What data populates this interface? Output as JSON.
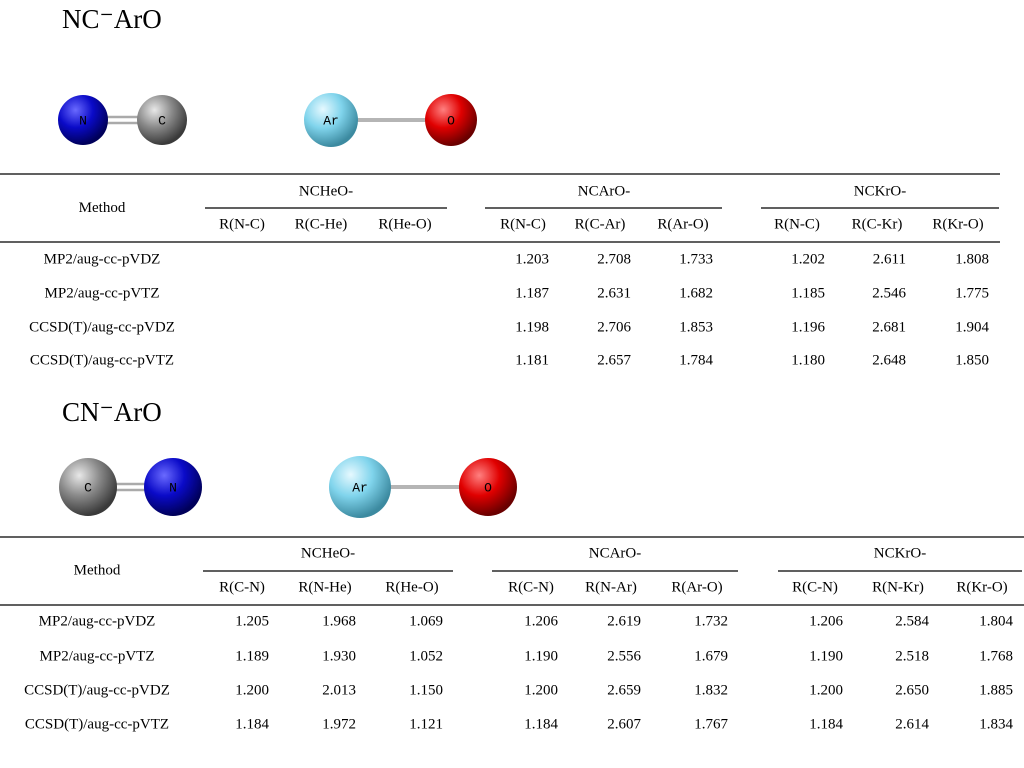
{
  "sections": [
    {
      "title": "NC⁻ArO",
      "molecules": [
        [
          "N",
          "C"
        ],
        [
          "Ar",
          "O"
        ]
      ],
      "table": {
        "header": "Method",
        "groups": [
          {
            "name": "NCHeO-",
            "columns": [
              "R(N-C)",
              "R(C-He)",
              "R(He-O)"
            ]
          },
          {
            "name": "NCArO-",
            "columns": [
              "R(N-C)",
              "R(C-Ar)",
              "R(Ar-O)"
            ]
          },
          {
            "name": "NCKrO-",
            "columns": [
              "R(N-C)",
              "R(C-Kr)",
              "R(Kr-O)"
            ]
          }
        ],
        "rows": [
          {
            "method": "MP2/aug-cc-pVDZ",
            "values": [
              null,
              null,
              null,
              "1.203",
              "2.708",
              "1.733",
              "1.202",
              "2.611",
              "1.808"
            ]
          },
          {
            "method": "MP2/aug-cc-pVTZ",
            "values": [
              null,
              null,
              null,
              "1.187",
              "2.631",
              "1.682",
              "1.185",
              "2.546",
              "1.775"
            ]
          },
          {
            "method": "CCSD(T)/aug-cc-pVDZ",
            "values": [
              null,
              null,
              null,
              "1.198",
              "2.706",
              "1.853",
              "1.196",
              "2.681",
              "1.904"
            ]
          },
          {
            "method": "CCSD(T)/aug-cc-pVTZ",
            "values": [
              null,
              null,
              null,
              "1.181",
              "2.657",
              "1.784",
              "1.180",
              "2.648",
              "1.850"
            ]
          }
        ]
      }
    },
    {
      "title": "CN⁻ArO",
      "molecules": [
        [
          "C",
          "N"
        ],
        [
          "Ar",
          "O"
        ]
      ],
      "table": {
        "header": "Method",
        "groups": [
          {
            "name": "NCHeO-",
            "columns": [
              "R(C-N)",
              "R(N-He)",
              "R(He-O)"
            ]
          },
          {
            "name": "NCArO-",
            "columns": [
              "R(C-N)",
              "R(N-Ar)",
              "R(Ar-O)"
            ]
          },
          {
            "name": "NCKrO-",
            "columns": [
              "R(C-N)",
              "R(N-Kr)",
              "R(Kr-O)"
            ]
          }
        ],
        "rows": [
          {
            "method": "MP2/aug-cc-pVDZ",
            "values": [
              "1.205",
              "1.968",
              "1.069",
              "1.206",
              "2.619",
              "1.732",
              "1.206",
              "2.584",
              "1.804"
            ]
          },
          {
            "method": "MP2/aug-cc-pVTZ",
            "values": [
              "1.189",
              "1.930",
              "1.052",
              "1.190",
              "2.556",
              "1.679",
              "1.190",
              "2.518",
              "1.768"
            ]
          },
          {
            "method": "CCSD(T)/aug-cc-pVDZ",
            "values": [
              "1.200",
              "2.013",
              "1.150",
              "1.200",
              "2.659",
              "1.832",
              "1.200",
              "2.650",
              "1.885"
            ]
          },
          {
            "method": "CCSD(T)/aug-cc-pVTZ",
            "values": [
              "1.184",
              "1.972",
              "1.121",
              "1.184",
              "2.607",
              "1.767",
              "1.184",
              "2.614",
              "1.834"
            ]
          }
        ]
      }
    }
  ]
}
